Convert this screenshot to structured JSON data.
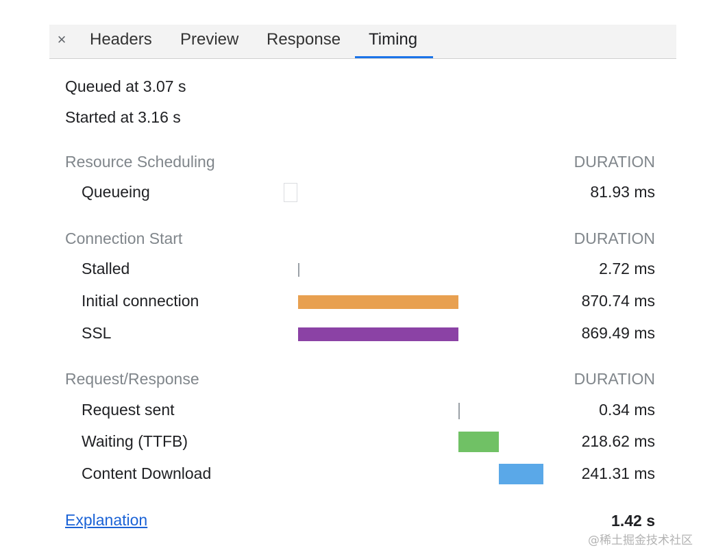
{
  "tabs": {
    "close_label": "×",
    "headers": "Headers",
    "preview": "Preview",
    "response": "Response",
    "timing": "Timing",
    "active": "Timing"
  },
  "summary": {
    "queued": "Queued at 3.07 s",
    "started": "Started at 3.16 s"
  },
  "sections": {
    "scheduling": {
      "title": "Resource Scheduling",
      "duration_header": "DURATION",
      "rows": [
        {
          "label": "Queueing",
          "value": "81.93 ms"
        }
      ]
    },
    "connection": {
      "title": "Connection Start",
      "duration_header": "DURATION",
      "rows": [
        {
          "label": "Stalled",
          "value": "2.72 ms"
        },
        {
          "label": "Initial connection",
          "value": "870.74 ms"
        },
        {
          "label": "SSL",
          "value": "869.49 ms"
        }
      ]
    },
    "request": {
      "title": "Request/Response",
      "duration_header": "DURATION",
      "rows": [
        {
          "label": "Request sent",
          "value": "0.34 ms"
        },
        {
          "label": "Waiting (TTFB)",
          "value": "218.62 ms"
        },
        {
          "label": "Content Download",
          "value": "241.31 ms"
        }
      ]
    }
  },
  "footer": {
    "explanation_link": "Explanation",
    "total": "1.42 s"
  },
  "watermark": "@稀土掘金技术社区",
  "colors": {
    "initial_connection": "#e8a050",
    "ssl": "#8b42a5",
    "waiting": "#70c165",
    "content_download": "#5aa8e8",
    "tab_underline": "#1a73e8"
  }
}
